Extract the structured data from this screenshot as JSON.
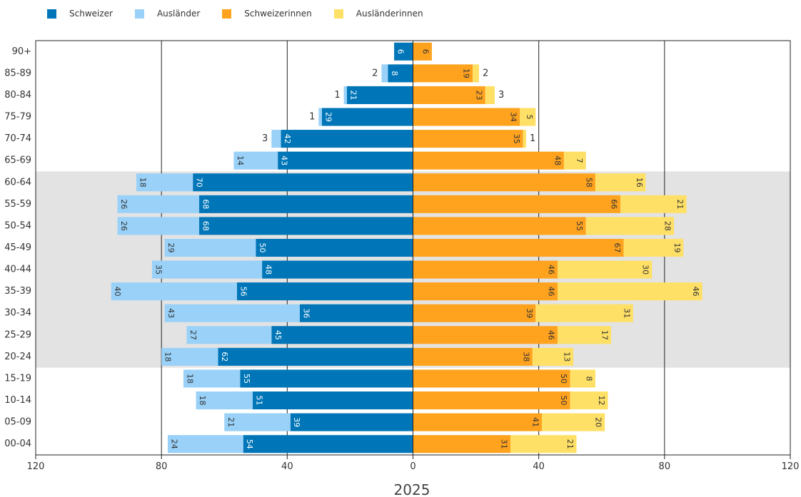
{
  "legend": [
    {
      "label": "Schweizer",
      "color": "#0076b8"
    },
    {
      "label": "Ausländer",
      "color": "#99d1f8"
    },
    {
      "label": "Schweizerinnen",
      "color": "#ffa31f"
    },
    {
      "label": "Ausländerinnen",
      "color": "#ffe066"
    }
  ],
  "chart_data": {
    "type": "bar",
    "orientation": "horizontal-population-pyramid",
    "stacked": true,
    "xlabel": "2025",
    "xlim": [
      -120,
      120
    ],
    "x_ticks": [
      -120,
      -80,
      -40,
      0,
      40,
      80,
      120
    ],
    "x_tick_labels": [
      "120",
      "80",
      "40",
      "0",
      "40",
      "80",
      "120"
    ],
    "highlight_band": [
      "20-24",
      "60-64"
    ],
    "highlight_color": "#e3e3e3",
    "grid_lines_at": [
      -80,
      -40,
      40,
      80
    ],
    "categories": [
      "90+",
      "85-89",
      "80-84",
      "75-79",
      "70-74",
      "65-69",
      "60-64",
      "55-59",
      "50-54",
      "45-49",
      "40-44",
      "35-39",
      "30-34",
      "25-29",
      "20-24",
      "15-19",
      "10-14",
      "05-09",
      "00-04"
    ],
    "series": [
      {
        "name": "Schweizer",
        "side": "left",
        "color": "#0076b8",
        "values": [
          6,
          8,
          21,
          29,
          42,
          43,
          70,
          68,
          68,
          50,
          48,
          56,
          36,
          45,
          62,
          55,
          51,
          39,
          54
        ]
      },
      {
        "name": "Ausländer",
        "side": "left",
        "color": "#99d1f8",
        "values": [
          0,
          2,
          1,
          1,
          3,
          14,
          18,
          26,
          26,
          29,
          35,
          40,
          43,
          27,
          18,
          18,
          18,
          21,
          24
        ]
      },
      {
        "name": "Schweizerinnen",
        "side": "right",
        "color": "#ffa31f",
        "values": [
          6,
          19,
          23,
          34,
          35,
          48,
          58,
          66,
          55,
          67,
          46,
          46,
          39,
          46,
          38,
          50,
          50,
          41,
          31
        ]
      },
      {
        "name": "Ausländerinnen",
        "side": "right",
        "color": "#ffe066",
        "values": [
          0,
          2,
          3,
          5,
          1,
          7,
          16,
          21,
          28,
          19,
          30,
          46,
          31,
          17,
          13,
          8,
          12,
          20,
          21
        ]
      }
    ]
  }
}
